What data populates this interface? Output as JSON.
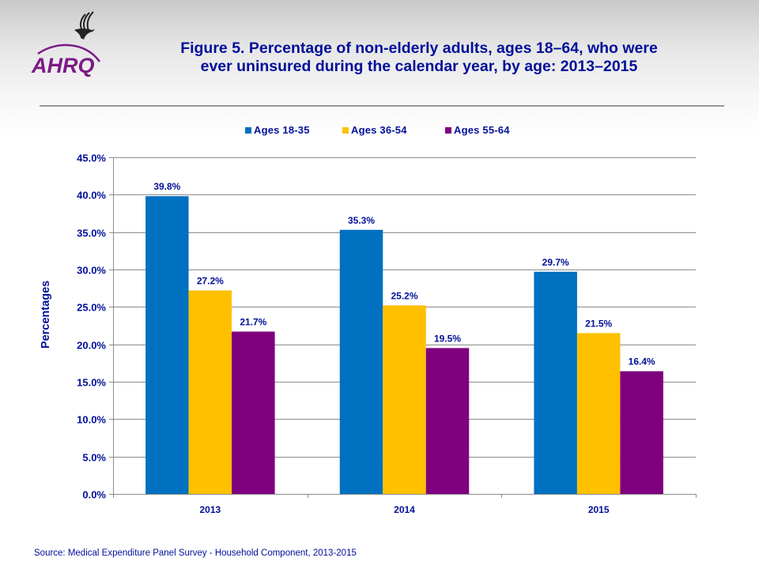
{
  "header": {
    "logo_text": "AHRQ",
    "title_line1": "Figure 5. Percentage of non-elderly adults, ages 18–64, who were",
    "title_line2": "ever uninsured during the calendar year, by age: 2013–2015"
  },
  "colors": {
    "title": "#000f99",
    "logo_purple": "#7b1a86",
    "gridline": "#8c8c8c"
  },
  "chart_data": {
    "type": "bar",
    "title": "Figure 5. Percentage of non-elderly adults, ages 18–64, who were ever uninsured during the calendar year, by age: 2013–2015",
    "xlabel": "",
    "ylabel": "Percentages",
    "categories": [
      "2013",
      "2014",
      "2015"
    ],
    "series": [
      {
        "name": "Ages 18-35",
        "color": "#0070c0",
        "values": [
          39.8,
          35.3,
          29.7
        ],
        "labels": [
          "39.8%",
          "35.3%",
          "29.7%"
        ]
      },
      {
        "name": "Ages 36-54",
        "color": "#ffc000",
        "values": [
          27.2,
          25.2,
          21.5
        ],
        "labels": [
          "27.2%",
          "25.2%",
          "21.5%"
        ]
      },
      {
        "name": "Ages 55-64",
        "color": "#7f007f",
        "values": [
          21.7,
          19.5,
          16.4
        ],
        "labels": [
          "21.7%",
          "19.5%",
          "16.4%"
        ]
      }
    ],
    "ylim": [
      0,
      45
    ],
    "yticks": [
      0,
      5,
      10,
      15,
      20,
      25,
      30,
      35,
      40,
      45
    ],
    "ytick_labels": [
      "0.0%",
      "5.0%",
      "10.0%",
      "15.0%",
      "20.0%",
      "25.0%",
      "30.0%",
      "35.0%",
      "40.0%",
      "45.0%"
    ],
    "grid": true,
    "legend_position": "top"
  },
  "footer": {
    "source": "Source:  Medical Expenditure Panel Survey - Household Component, 2013-2015"
  }
}
